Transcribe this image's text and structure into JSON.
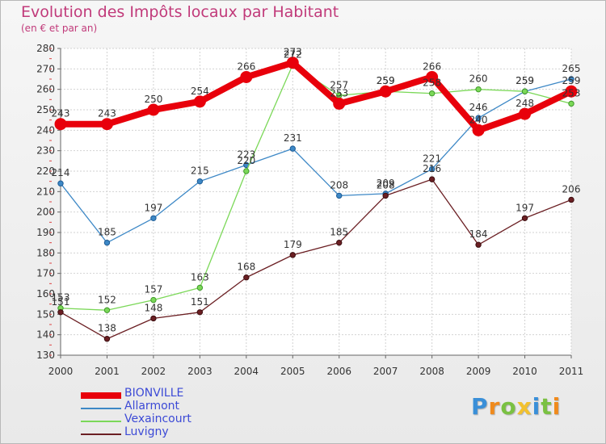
{
  "header": {
    "title": "Evolution des Impôts locaux par Habitant",
    "subtitle": "(en € et par an)"
  },
  "logo": {
    "text": "Proxiti"
  },
  "chart_data": {
    "type": "line",
    "title": "Evolution des Impôts locaux par Habitant",
    "subtitle": "(en € et par an)",
    "xlabel": "",
    "ylabel": "",
    "ylim": [
      130,
      280
    ],
    "y_ticks": [
      130,
      140,
      150,
      160,
      170,
      180,
      190,
      200,
      210,
      220,
      230,
      240,
      250,
      260,
      270,
      280
    ],
    "grid": true,
    "legend_position": "bottom-left",
    "x": [
      "2000",
      "2001",
      "2002",
      "2003",
      "2004",
      "2005",
      "2006",
      "2007",
      "2008",
      "2009",
      "2010",
      "2011"
    ],
    "series": [
      {
        "name": "BIONVILLE",
        "color": "#e8000b",
        "values": [
          243,
          243,
          250,
          254,
          266,
          273,
          253,
          259,
          266,
          240,
          248,
          259
        ]
      },
      {
        "name": "Allarmont",
        "color": "#3d88c6",
        "values": [
          214,
          185,
          197,
          215,
          223,
          231,
          208,
          209,
          221,
          246,
          259,
          265
        ]
      },
      {
        "name": "Vexaincourt",
        "color": "#7bd858",
        "values": [
          153,
          152,
          157,
          163,
          220,
          272,
          257,
          259,
          258,
          260,
          259,
          253
        ]
      },
      {
        "name": "Luvigny",
        "color": "#6b1f23",
        "values": [
          151,
          138,
          148,
          151,
          168,
          179,
          185,
          208,
          216,
          184,
          197,
          206
        ]
      }
    ]
  }
}
